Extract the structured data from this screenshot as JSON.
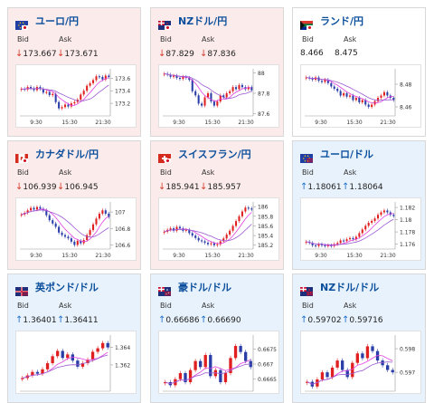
{
  "labels": {
    "bid": "Bid",
    "ask": "Ask"
  },
  "colors": {
    "down_bg": "#fcebeb",
    "up_bg": "#e8f2fc",
    "up_candle": "#e02020",
    "down_candle": "#2b3ea8",
    "ma_pink": "#e040e0",
    "ma_purple": "#9b59d0",
    "title": "#0b4f9c"
  },
  "tiles": [
    {
      "name": "ユーロ/円",
      "flag": "eu-jp",
      "trend": "down",
      "bid": "173.667",
      "ask": "173.671",
      "yticks": [
        "173.6",
        "173.4",
        "173.2"
      ],
      "yvals": [
        173.6,
        173.4,
        173.2
      ],
      "ymin": 173.0,
      "ymax": 173.72,
      "xticks": [
        "9:30",
        "15:30",
        "21:30"
      ],
      "series": [
        173.43,
        173.42,
        173.46,
        173.44,
        173.41,
        173.46,
        173.43,
        173.37,
        173.38,
        173.33,
        173.35,
        173.22,
        173.12,
        173.14,
        173.18,
        173.15,
        173.2,
        173.22,
        173.26,
        173.34,
        173.4,
        173.48,
        173.52,
        173.57,
        173.63,
        173.62,
        173.58,
        173.64,
        173.62
      ]
    },
    {
      "name": "NZドル/円",
      "flag": "nz-jp",
      "trend": "down",
      "bid": "87.829",
      "ask": "87.836",
      "yticks": [
        "88",
        "87.8",
        "87.6"
      ],
      "yvals": [
        88.0,
        87.8,
        87.6
      ],
      "ymin": 87.58,
      "ymax": 88.02,
      "xticks": [
        "9:30",
        "15:30",
        "21:30"
      ],
      "series": [
        87.99,
        87.98,
        87.96,
        87.97,
        87.95,
        87.94,
        87.96,
        87.95,
        87.93,
        87.82,
        87.78,
        87.7,
        87.68,
        87.76,
        87.8,
        87.72,
        87.68,
        87.72,
        87.78,
        87.76,
        87.8,
        87.82,
        87.86,
        87.84,
        87.88,
        87.86,
        87.84,
        87.86,
        87.83
      ]
    },
    {
      "name": "ランド/円",
      "flag": "za-jp",
      "trend": "flat",
      "bid": "8.466",
      "ask": "8.475",
      "yticks": [
        "8.48",
        "8.46"
      ],
      "yvals": [
        8.48,
        8.46
      ],
      "ymin": 8.452,
      "ymax": 8.492,
      "xticks": [
        "9:30",
        "15:30",
        "21:30"
      ],
      "series": [
        8.486,
        8.485,
        8.484,
        8.486,
        8.483,
        8.482,
        8.484,
        8.481,
        8.478,
        8.476,
        8.474,
        8.47,
        8.472,
        8.469,
        8.47,
        8.466,
        8.468,
        8.464,
        8.466,
        8.462,
        8.46,
        8.462,
        8.465,
        8.468,
        8.47,
        8.473,
        8.47,
        8.468,
        8.466
      ]
    },
    {
      "name": "カナダドル/円",
      "flag": "ca-jp",
      "trend": "down",
      "bid": "106.939",
      "ask": "106.945",
      "yticks": [
        "107",
        "106.8",
        "106.6"
      ],
      "yvals": [
        107.0,
        106.8,
        106.6
      ],
      "ymin": 106.55,
      "ymax": 107.1,
      "xticks": [
        "9:30",
        "15:30",
        "21:30"
      ],
      "series": [
        106.97,
        106.99,
        107.02,
        107.05,
        107.03,
        107.06,
        107.04,
        107.02,
        106.96,
        106.9,
        106.86,
        106.82,
        106.75,
        106.72,
        106.7,
        106.68,
        106.64,
        106.6,
        106.65,
        106.62,
        106.66,
        106.72,
        106.78,
        106.85,
        106.92,
        106.98,
        107.02,
        106.98,
        106.94
      ]
    },
    {
      "name": "スイスフラン/円",
      "flag": "ch-jp",
      "trend": "down",
      "bid": "185.941",
      "ask": "185.957",
      "yticks": [
        "186",
        "185.8",
        "185.6",
        "185.4",
        "185.2"
      ],
      "yvals": [
        186.0,
        185.8,
        185.6,
        185.4,
        185.2
      ],
      "ymin": 185.12,
      "ymax": 186.06,
      "xticks": [
        "9:30",
        "15:30",
        "21:30"
      ],
      "series": [
        185.48,
        185.52,
        185.55,
        185.5,
        185.58,
        185.55,
        185.5,
        185.52,
        185.45,
        185.4,
        185.35,
        185.3,
        185.28,
        185.25,
        185.22,
        185.24,
        185.2,
        185.22,
        185.28,
        185.34,
        185.42,
        185.5,
        185.6,
        185.7,
        185.8,
        185.9,
        185.98,
        185.96,
        185.94
      ]
    },
    {
      "name": "ユーロ/ドル",
      "flag": "eu-us",
      "trend": "up",
      "bid": "1.18061",
      "ask": "1.18064",
      "yticks": [
        "1.182",
        "1.18",
        "1.178",
        "1.176"
      ],
      "yvals": [
        1.182,
        1.18,
        1.178,
        1.176
      ],
      "ymin": 1.1752,
      "ymax": 1.1826,
      "xticks": [
        "9:30",
        "15:30",
        "21:30"
      ],
      "series": [
        1.1764,
        1.1762,
        1.1758,
        1.1757,
        1.176,
        1.1758,
        1.1757,
        1.1758,
        1.1757,
        1.176,
        1.1762,
        1.1766,
        1.1765,
        1.1768,
        1.177,
        1.1768,
        1.1772,
        1.1778,
        1.1784,
        1.179,
        1.1795,
        1.1798,
        1.1802,
        1.1808,
        1.1812,
        1.1815,
        1.1812,
        1.1808,
        1.1806
      ]
    },
    {
      "name": "英ポンド/ドル",
      "flag": "gb-us",
      "trend": "up",
      "bid": "1.36401",
      "ask": "1.36411",
      "yticks": [
        "1.364",
        "1.362"
      ],
      "yvals": [
        1.364,
        1.362
      ],
      "ymin": 1.359,
      "ymax": 1.3652,
      "xticks": [],
      "series": [
        1.3605,
        1.3608,
        1.3612,
        1.361,
        1.3615,
        1.3622,
        1.363,
        1.3636,
        1.3628,
        1.3632,
        1.3625,
        1.3618,
        1.3622,
        1.3626,
        1.3635,
        1.3639,
        1.3645,
        1.364
      ]
    },
    {
      "name": "豪ドル/ドル",
      "flag": "au-us",
      "trend": "up",
      "bid": "0.66686",
      "ask": "0.66690",
      "yticks": [
        "0.6675",
        "0.667",
        "0.6665"
      ],
      "yvals": [
        0.6675,
        0.667,
        0.6665
      ],
      "ymin": 0.6661,
      "ymax": 0.6679,
      "xticks": [],
      "series": [
        0.6664,
        0.6663,
        0.6665,
        0.6667,
        0.6664,
        0.6668,
        0.6671,
        0.6669,
        0.6673,
        0.6666,
        0.6668,
        0.6664,
        0.6667,
        0.6672,
        0.6676,
        0.6674,
        0.6671,
        0.6669
      ]
    },
    {
      "name": "NZドル/ドル",
      "flag": "nz-us",
      "trend": "up",
      "bid": "0.59702",
      "ask": "0.59716",
      "yticks": [
        "0.598",
        "0.597"
      ],
      "yvals": [
        0.598,
        0.597
      ],
      "ymin": 0.5962,
      "ymax": 0.5985,
      "xticks": [],
      "series": [
        0.5966,
        0.5964,
        0.5967,
        0.597,
        0.5968,
        0.5972,
        0.5975,
        0.5971,
        0.5968,
        0.5974,
        0.5978,
        0.5976,
        0.5981,
        0.5979,
        0.5975,
        0.5973,
        0.5971,
        0.597
      ]
    }
  ]
}
